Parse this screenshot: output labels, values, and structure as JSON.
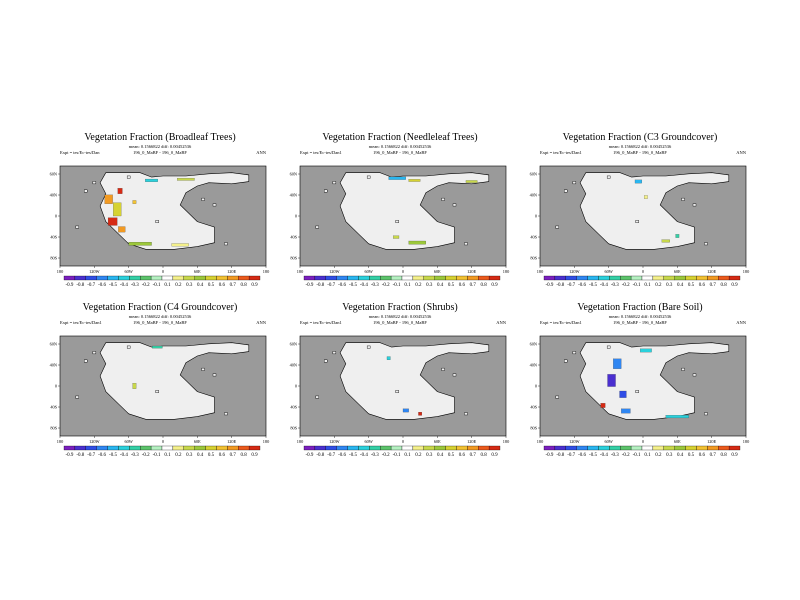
{
  "colorbar": {
    "labels": [
      "-0.9",
      "-0.8",
      "-0.7",
      "-0.6",
      "-0.5",
      "-0.4",
      "-0.3",
      "-0.2",
      "-0.1",
      "0.1",
      "0.2",
      "0.3",
      "0.4",
      "0.5",
      "0.6",
      "0.7",
      "0.8",
      "0.9"
    ],
    "colors": [
      "#7b1fbf",
      "#4a2fd0",
      "#2f4de6",
      "#2f86f2",
      "#29b6f0",
      "#2ad1dc",
      "#34d0a6",
      "#5cc46b",
      "#b4f0c0",
      "#ffffff",
      "#f4f08a",
      "#c8d84a",
      "#9cc83a",
      "#d6d232",
      "#f2c232",
      "#f29a22",
      "#ec5a1c",
      "#d62a14"
    ]
  },
  "lon_ticks": [
    "180",
    "120W",
    "60W",
    "0",
    "60E",
    "120E",
    "180"
  ],
  "lat_ticks": [
    "60N",
    "40N",
    "0",
    "40S",
    "80S"
  ],
  "chart_data": [
    {
      "type": "heatmap",
      "title": "Vegetation Fraction (Broadleaf Trees)",
      "line1": "mean: 0.1566822 diff: 0.00452536",
      "expt": "Expt = tes/Ec-tes/Dan",
      "left": "196_0_MaBF - 196_0_MaBF",
      "ann": "ANN",
      "features": [
        {
          "lon": -95,
          "lat": 30,
          "w": 14,
          "h": 16,
          "v": 0.7
        },
        {
          "lon": -80,
          "lat": 12,
          "w": 14,
          "h": 24,
          "v": 0.5
        },
        {
          "lon": -88,
          "lat": -10,
          "w": 16,
          "h": 14,
          "v": 0.9
        },
        {
          "lon": -72,
          "lat": -24,
          "w": 12,
          "h": 10,
          "v": 0.7
        },
        {
          "lon": -40,
          "lat": -50,
          "w": 40,
          "h": 6,
          "v": 0.4
        },
        {
          "lon": 30,
          "lat": -52,
          "w": 30,
          "h": 5,
          "v": 0.2
        },
        {
          "lon": -20,
          "lat": 64,
          "w": 22,
          "h": 5,
          "v": -0.4
        },
        {
          "lon": 40,
          "lat": 66,
          "w": 30,
          "h": 4,
          "v": 0.3
        },
        {
          "lon": -75,
          "lat": 45,
          "w": 8,
          "h": 10,
          "v": 0.9
        },
        {
          "lon": -50,
          "lat": 25,
          "w": 6,
          "h": 6,
          "v": 0.6
        }
      ]
    },
    {
      "type": "heatmap",
      "title": "Vegetation Fraction (Needleleaf Trees)",
      "line1": "mean: 0.1566822 diff: 0.00452536",
      "expt": "Expt = tes/Ec-tes/Dan1",
      "left": "196_0_MaBF - 196_0_MaBF",
      "ann": "",
      "features": [
        {
          "lon": -10,
          "lat": 68,
          "w": 30,
          "h": 5,
          "v": -0.5
        },
        {
          "lon": 20,
          "lat": 64,
          "w": 20,
          "h": 4,
          "v": 0.5
        },
        {
          "lon": 120,
          "lat": 62,
          "w": 20,
          "h": 4,
          "v": 0.3
        },
        {
          "lon": 25,
          "lat": -48,
          "w": 30,
          "h": 6,
          "v": 0.4
        },
        {
          "lon": -12,
          "lat": -38,
          "w": 10,
          "h": 5,
          "v": 0.3
        }
      ]
    },
    {
      "type": "heatmap",
      "title": "Vegetation Fraction (C3 Groundcover)",
      "line1": "mean: 0.1566822 diff: 0.00452536",
      "expt": "Expt = tes/Ec-tes/Dan1",
      "left": "196_0_MaBF - 196_0_MaBF",
      "ann": "ANN",
      "features": [
        {
          "lon": -8,
          "lat": 62,
          "w": 12,
          "h": 6,
          "v": -0.5
        },
        {
          "lon": 5,
          "lat": 34,
          "w": 6,
          "h": 6,
          "v": 0.2
        },
        {
          "lon": 40,
          "lat": -45,
          "w": 14,
          "h": 5,
          "v": 0.3
        },
        {
          "lon": 60,
          "lat": -36,
          "w": 6,
          "h": 6,
          "v": -0.3
        }
      ]
    },
    {
      "type": "heatmap",
      "title": "Vegetation Fraction (C4 Groundcover)",
      "line1": "mean: 0.1566822 diff: 0.00452536",
      "expt": "Expt = tes/Ec-tes/Dan1",
      "left": "196_0_MaBF - 196_0_MaBF",
      "ann": "ANN",
      "features": [
        {
          "lon": -50,
          "lat": 0,
          "w": 6,
          "h": 10,
          "v": 0.3
        },
        {
          "lon": -10,
          "lat": 70,
          "w": 18,
          "h": 4,
          "v": -0.3
        }
      ]
    },
    {
      "type": "heatmap",
      "title": "Vegetation Fraction (Shrubs)",
      "line1": "mean: 0.1566822 diff: 0.00452536",
      "expt": "Expt = tes/Ec-tes/Dan1",
      "left": "196_0_MaBF - 196_0_MaBF",
      "ann": "ANN",
      "features": [
        {
          "lon": -25,
          "lat": 50,
          "w": 6,
          "h": 6,
          "v": -0.4
        },
        {
          "lon": 5,
          "lat": -44,
          "w": 10,
          "h": 6,
          "v": -0.6
        },
        {
          "lon": 30,
          "lat": -50,
          "w": 6,
          "h": 6,
          "v": 0.9
        }
      ]
    },
    {
      "type": "heatmap",
      "title": "Vegetation Fraction (Bare Soil)",
      "line1": "mean: 0.1566822 diff: 0.00452536",
      "expt": "Expt = tes/Ec-tes/Dan1",
      "left": "196_0_MaBF - 196_0_MaBF",
      "ann": "ANN",
      "features": [
        {
          "lon": -45,
          "lat": 40,
          "w": 14,
          "h": 18,
          "v": -0.6
        },
        {
          "lon": -55,
          "lat": 10,
          "w": 14,
          "h": 22,
          "v": -0.8
        },
        {
          "lon": -35,
          "lat": -15,
          "w": 12,
          "h": 12,
          "v": -0.7
        },
        {
          "lon": -30,
          "lat": -45,
          "w": 16,
          "h": 8,
          "v": -0.6
        },
        {
          "lon": 5,
          "lat": 64,
          "w": 20,
          "h": 6,
          "v": -0.4
        },
        {
          "lon": 60,
          "lat": -55,
          "w": 40,
          "h": 5,
          "v": -0.4
        },
        {
          "lon": -70,
          "lat": -35,
          "w": 8,
          "h": 8,
          "v": 0.9
        }
      ]
    }
  ]
}
